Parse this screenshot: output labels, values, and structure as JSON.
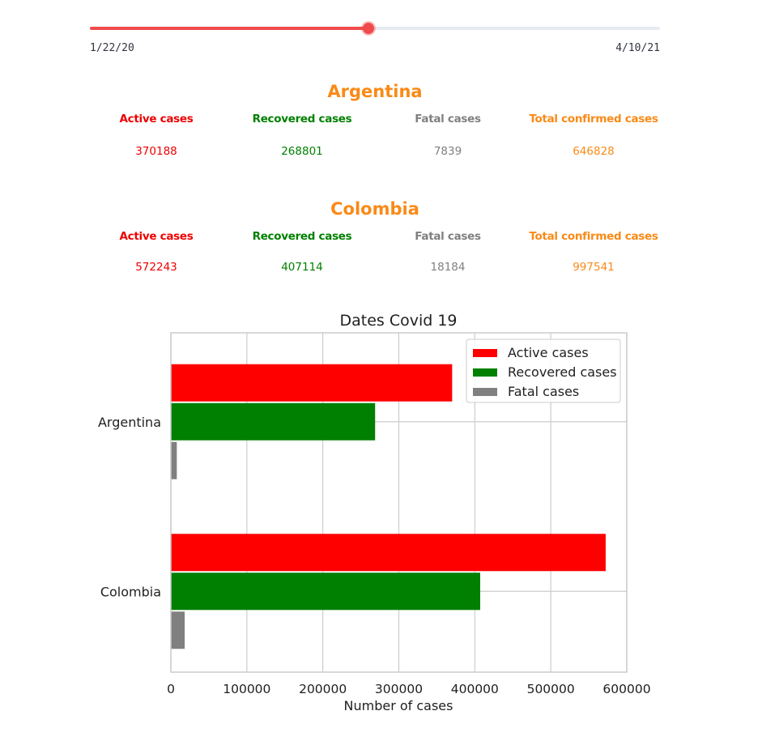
{
  "slider": {
    "min_label": "1/22/20",
    "max_label": "4/10/21",
    "position": 0.488
  },
  "countries": [
    {
      "name": "Argentina",
      "labels": {
        "active": "Active cases",
        "recovered": "Recovered cases",
        "fatal": "Fatal cases",
        "total": "Total confirmed cases"
      },
      "values": {
        "active": "370188",
        "recovered": "268801",
        "fatal": "7839",
        "total": "646828"
      }
    },
    {
      "name": "Colombia",
      "labels": {
        "active": "Active cases",
        "recovered": "Recovered cases",
        "fatal": "Fatal cases",
        "total": "Total confirmed cases"
      },
      "values": {
        "active": "572243",
        "recovered": "407114",
        "fatal": "18184",
        "total": "997541"
      }
    }
  ],
  "colors": {
    "active": "#ff0000",
    "recovered": "#008000",
    "fatal": "#808080",
    "total": "#f98a17",
    "slider": "#f04b4b"
  },
  "chart_data": {
    "type": "bar",
    "orientation": "horizontal",
    "title": "Dates Covid 19",
    "xlabel": "Number of cases",
    "ylabel": "",
    "categories": [
      "Argentina",
      "Colombia"
    ],
    "series": [
      {
        "name": "Active cases",
        "color": "#ff0000",
        "values": [
          370188,
          572243
        ]
      },
      {
        "name": "Recovered cases",
        "color": "#008000",
        "values": [
          268801,
          407114
        ]
      },
      {
        "name": "Fatal cases",
        "color": "#808080",
        "values": [
          7839,
          18184
        ]
      }
    ],
    "xlim": [
      0,
      600000
    ],
    "xticks": [
      "0",
      "100000",
      "200000",
      "300000",
      "400000",
      "500000",
      "600000"
    ],
    "grid": true,
    "legend_position": "top-right"
  }
}
